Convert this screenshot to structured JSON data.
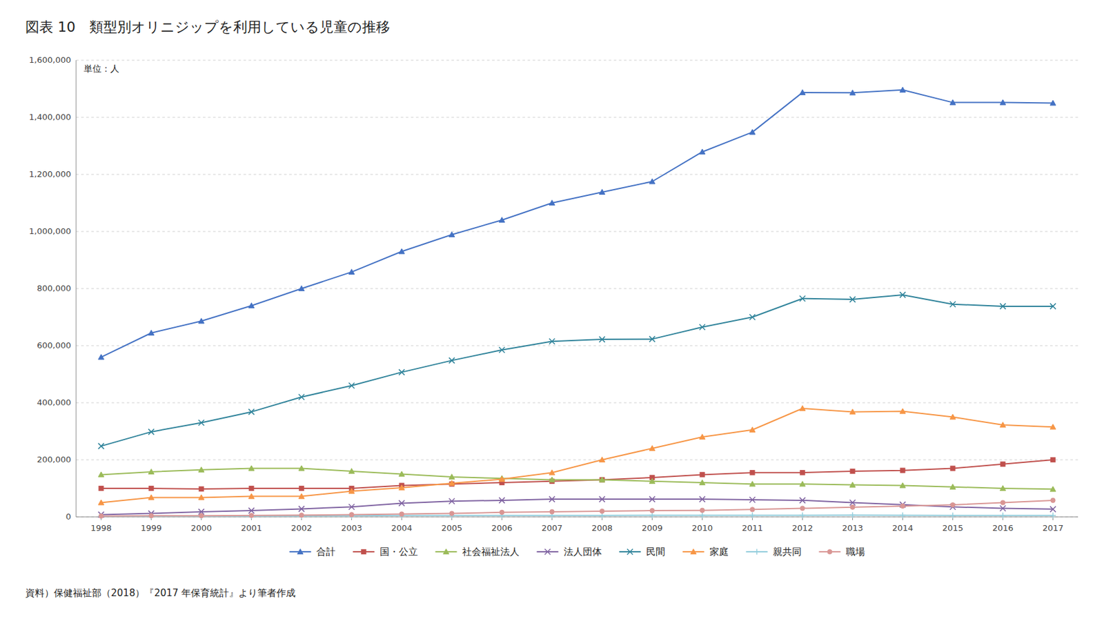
{
  "chart_data": {
    "type": "line",
    "title": "図表 10　類型別オリニジップを利用している児童の推移",
    "ylabel": "単位：人",
    "annotations": [
      "資料）保健福祉部（2018）『2017 年保育統計』より筆者作成"
    ],
    "x": [
      1998,
      1999,
      2000,
      2001,
      2002,
      2003,
      2004,
      2005,
      2006,
      2007,
      2008,
      2009,
      2010,
      2011,
      2012,
      2013,
      2014,
      2015,
      2016,
      2017
    ],
    "series": [
      {
        "name": "合計",
        "color": "#4472C4",
        "marker": "triangle",
        "values": [
          559513,
          644489,
          686000,
          740000,
          800000,
          858000,
          930000,
          989000,
          1040000,
          1100000,
          1138000,
          1175000,
          1279000,
          1348000,
          1487000,
          1486000,
          1496000,
          1452000,
          1452000,
          1450000
        ]
      },
      {
        "name": "国・公立",
        "color": "#C0504D",
        "marker": "square",
        "values": [
          100000,
          100000,
          98000,
          100000,
          100000,
          100000,
          110000,
          115000,
          120000,
          125000,
          130000,
          138000,
          148000,
          155000,
          155000,
          160000,
          163000,
          170000,
          185000,
          200000
        ]
      },
      {
        "name": "社会福祉法人",
        "color": "#9BBB59",
        "marker": "triangle",
        "values": [
          148000,
          158000,
          165000,
          170000,
          170000,
          160000,
          150000,
          140000,
          135000,
          130000,
          130000,
          125000,
          120000,
          115000,
          115000,
          112000,
          110000,
          105000,
          100000,
          97000
        ]
      },
      {
        "name": "法人団体",
        "color": "#8064A2",
        "marker": "x",
        "values": [
          8000,
          12000,
          18000,
          22000,
          28000,
          35000,
          48000,
          55000,
          58000,
          62000,
          62000,
          62000,
          62000,
          60000,
          58000,
          50000,
          43000,
          35000,
          30000,
          27000
        ]
      },
      {
        "name": "民間",
        "color": "#31849B",
        "marker": "x",
        "values": [
          248000,
          298000,
          330000,
          368000,
          420000,
          460000,
          507000,
          548000,
          585000,
          615000,
          622000,
          623000,
          665000,
          700000,
          765000,
          762000,
          778000,
          745000,
          738000,
          738000
        ]
      },
      {
        "name": "家庭",
        "color": "#F79646",
        "marker": "triangle",
        "values": [
          50000,
          68000,
          68000,
          72000,
          72000,
          90000,
          102000,
          118000,
          132000,
          155000,
          200000,
          240000,
          280000,
          305000,
          380000,
          368000,
          370000,
          350000,
          322000,
          315000
        ]
      },
      {
        "name": "親共同",
        "color": "#92CDDC",
        "marker": "plus",
        "values": [
          2000,
          3000,
          3000,
          3000,
          3500,
          4000,
          5000,
          5000,
          5000,
          5000,
          5000,
          5500,
          5500,
          5500,
          5500,
          6000,
          5500,
          5000,
          5000,
          5000
        ]
      },
      {
        "name": "職場",
        "color": "#D99694",
        "marker": "circle",
        "values": [
          3000,
          4000,
          4000,
          5000,
          6000,
          8000,
          10000,
          12000,
          16000,
          18000,
          20000,
          22000,
          23000,
          26000,
          30000,
          34000,
          38000,
          42000,
          50000,
          58000
        ]
      }
    ],
    "xlim": [
      1997.5,
      2017.5
    ],
    "xticks": [
      1998,
      1999,
      2000,
      2001,
      2002,
      2003,
      2004,
      2005,
      2006,
      2007,
      2008,
      2009,
      2010,
      2011,
      2012,
      2013,
      2014,
      2015,
      2016,
      2017
    ],
    "ylim": [
      0,
      1600000
    ],
    "yticks": [
      {
        "value": 0,
        "label": "0"
      },
      {
        "value": 200000,
        "label": "200,000"
      },
      {
        "value": 400000,
        "label": "400,000"
      },
      {
        "value": 600000,
        "label": "600,000"
      },
      {
        "value": 800000,
        "label": "800,000"
      },
      {
        "value": 1000000,
        "label": "1,000,000"
      },
      {
        "value": 1200000,
        "label": "1,200,000"
      },
      {
        "value": 1400000,
        "label": "1,400,000"
      },
      {
        "value": 1600000,
        "label": "1,600,000"
      }
    ],
    "grid": true,
    "legend": "bottom"
  }
}
